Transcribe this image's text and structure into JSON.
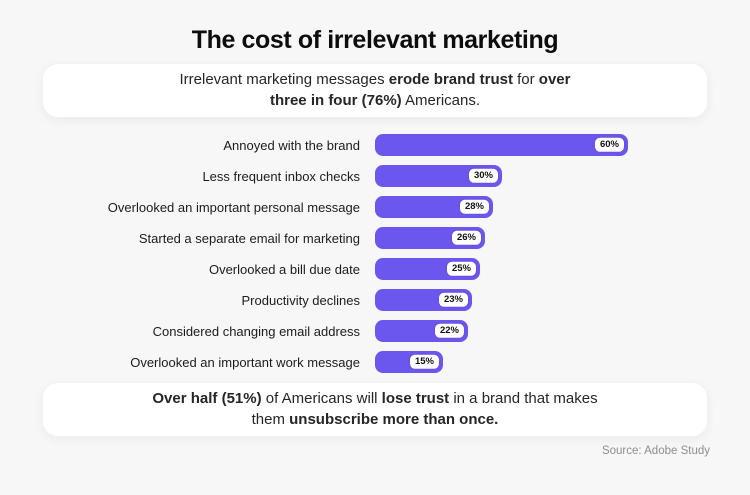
{
  "page": {
    "title": "The cost of irrelevant marketing",
    "source": "Source: Adobe Study",
    "background_color": "#F7F7F8",
    "card_color": "#FFFFFF"
  },
  "top_card": {
    "lines": [
      [
        {
          "t": "Irrelevant marketing messages ",
          "b": false
        },
        {
          "t": "erode brand trust",
          "b": true
        },
        {
          "t": " for ",
          "b": false
        },
        {
          "t": "over",
          "b": true
        }
      ],
      [
        {
          "t": "three in four (76%)",
          "b": true
        },
        {
          "t": " Americans.",
          "b": false
        }
      ]
    ]
  },
  "bottom_card": {
    "lines": [
      [
        {
          "t": "Over half (51%)",
          "b": true
        },
        {
          "t": " of Americans will ",
          "b": false
        },
        {
          "t": "lose trust",
          "b": true
        },
        {
          "t": " in a brand that makes",
          "b": false
        }
      ],
      [
        {
          "t": "them ",
          "b": false
        },
        {
          "t": "unsubscribe more than once.",
          "b": true
        }
      ]
    ]
  },
  "chart_data": {
    "type": "bar",
    "orientation": "horizontal",
    "title": "The cost of irrelevant marketing",
    "categories": [
      "Annoyed with the brand",
      "Less frequent inbox checks",
      "Overlooked an important personal message",
      "Started a separate email for marketing",
      "Overlooked a bill due date",
      "Productivity declines",
      "Considered changing email address",
      "Overlooked an important work message"
    ],
    "values": [
      60,
      30,
      28,
      26,
      25,
      23,
      22,
      15
    ],
    "value_labels": [
      "60%",
      "30%",
      "28%",
      "26%",
      "25%",
      "23%",
      "22%",
      "15%"
    ],
    "xlabel": "",
    "ylabel": "",
    "xlim": [
      0,
      60
    ],
    "grid": false,
    "legend": false,
    "bar_color": "#6C57EE",
    "badge_bg": "#FFFFFF",
    "badge_text_color": "#111111"
  }
}
